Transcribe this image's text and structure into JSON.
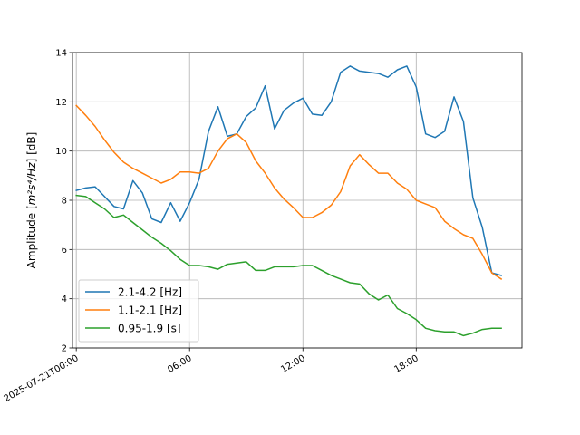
{
  "chart_data": {
    "type": "line",
    "title": "",
    "xlabel": "",
    "ylabel_prefix": "Amplitude [",
    "ylabel_math": "m²s⁴/Hz",
    "ylabel_suffix": "] [dB]",
    "xlim_hours": [
      -0.2,
      23.6
    ],
    "ylim": [
      2,
      14
    ],
    "grid": true,
    "legend_position": "lower-left",
    "x_ticks": [
      {
        "hour": 0,
        "label": "2025-07-21T00:00"
      },
      {
        "hour": 6,
        "label": "06:00"
      },
      {
        "hour": 12,
        "label": "12:00"
      },
      {
        "hour": 18,
        "label": "18:00"
      }
    ],
    "y_ticks": [
      {
        "value": 2,
        "label": "2"
      },
      {
        "value": 4,
        "label": "4"
      },
      {
        "value": 6,
        "label": "6"
      },
      {
        "value": 8,
        "label": "8"
      },
      {
        "value": 10,
        "label": "10"
      },
      {
        "value": 12,
        "label": "12"
      },
      {
        "value": 14,
        "label": "14"
      }
    ],
    "series": [
      {
        "name": "2.1-4.2 [Hz]",
        "color": "#1f77b4",
        "x": [
          0,
          0.5,
          1,
          1.5,
          2,
          2.5,
          3,
          3.5,
          4,
          4.5,
          5,
          5.5,
          6,
          6.5,
          7,
          7.5,
          8,
          8.5,
          9,
          9.5,
          10,
          10.5,
          11,
          11.5,
          12,
          12.5,
          13,
          13.5,
          14,
          14.5,
          15,
          15.5,
          16,
          16.5,
          17,
          17.5,
          18,
          18.5,
          19,
          19.5,
          20,
          20.5,
          21,
          21.5,
          22,
          22.5
        ],
        "y": [
          8.4,
          8.5,
          8.55,
          8.15,
          7.75,
          7.65,
          8.8,
          8.3,
          7.25,
          7.1,
          7.9,
          7.15,
          7.9,
          8.85,
          10.8,
          11.8,
          10.6,
          10.7,
          11.4,
          11.75,
          12.65,
          10.9,
          11.65,
          11.95,
          12.15,
          11.5,
          11.45,
          12.0,
          13.2,
          13.45,
          13.25,
          13.2,
          13.15,
          13.0,
          13.3,
          13.45,
          12.6,
          10.7,
          10.55,
          10.8,
          12.2,
          11.2,
          8.1,
          6.9,
          5.05,
          4.95
        ]
      },
      {
        "name": "1.1-2.1 [Hz]",
        "color": "#ff7f0e",
        "x": [
          0,
          0.5,
          1,
          1.5,
          2,
          2.5,
          3,
          3.5,
          4,
          4.5,
          5,
          5.5,
          6,
          6.5,
          7,
          7.5,
          8,
          8.5,
          9,
          9.5,
          10,
          10.5,
          11,
          11.5,
          12,
          12.5,
          13,
          13.5,
          14,
          14.5,
          15,
          15.5,
          16,
          16.5,
          17,
          17.5,
          18,
          18.5,
          19,
          19.5,
          20,
          20.5,
          21,
          21.5,
          22,
          22.5
        ],
        "y": [
          11.85,
          11.45,
          11.0,
          10.45,
          9.95,
          9.55,
          9.3,
          9.1,
          8.9,
          8.7,
          8.85,
          9.15,
          9.15,
          9.1,
          9.3,
          10.0,
          10.5,
          10.7,
          10.35,
          9.6,
          9.1,
          8.5,
          8.05,
          7.7,
          7.3,
          7.3,
          7.5,
          7.8,
          8.35,
          9.4,
          9.85,
          9.45,
          9.1,
          9.1,
          8.7,
          8.45,
          8.0,
          7.85,
          7.7,
          7.15,
          6.85,
          6.6,
          6.45,
          5.8,
          5.05,
          4.8
        ]
      },
      {
        "name": "0.95-1.9 [s]",
        "color": "#2ca02c",
        "x": [
          0,
          0.5,
          1,
          1.5,
          2,
          2.5,
          3,
          3.5,
          4,
          4.5,
          5,
          5.5,
          6,
          6.5,
          7,
          7.5,
          8,
          8.5,
          9,
          9.5,
          10,
          10.5,
          11,
          11.5,
          12,
          12.5,
          13,
          13.5,
          14,
          14.5,
          15,
          15.5,
          16,
          16.5,
          17,
          17.5,
          18,
          18.5,
          19,
          19.5,
          20,
          20.5,
          21,
          21.5,
          22,
          22.5
        ],
        "y": [
          8.2,
          8.15,
          7.9,
          7.65,
          7.3,
          7.4,
          7.1,
          6.8,
          6.5,
          6.25,
          5.95,
          5.6,
          5.35,
          5.35,
          5.3,
          5.2,
          5.4,
          5.45,
          5.5,
          5.15,
          5.15,
          5.3,
          5.3,
          5.3,
          5.35,
          5.35,
          5.15,
          4.95,
          4.8,
          4.65,
          4.6,
          4.2,
          3.95,
          4.15,
          3.6,
          3.4,
          3.15,
          2.8,
          2.7,
          2.65,
          2.65,
          2.5,
          2.6,
          2.75,
          2.8,
          2.8
        ]
      }
    ]
  }
}
